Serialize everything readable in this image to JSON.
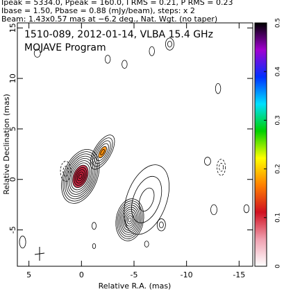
{
  "chart_data": {
    "type": "contour",
    "header": [
      "Ipeak = 5334.0, Ppeak = 160.0, I RMS = 0.21, P RMS = 0.23",
      "Ibase = 1.50, Pbase = 0.88 (mJy/beam), steps: x 2",
      "Beam: 1.43x0.57 mas at −6.2 deg., Nat. Wgt. (no taper)"
    ],
    "title": "1510-089, 2012-01-14, VLBA 15.4 GHz",
    "subtitle": "MOJAVE Program",
    "xlabel": "Relative R.A. (mas)",
    "ylabel": "Relative Declination (mas)",
    "xlim": [
      6.1,
      -16.3
    ],
    "ylim": [
      -8.6,
      15.5
    ],
    "xticks": [
      5,
      0,
      -5,
      -10,
      -15
    ],
    "yticks": [
      -5,
      0,
      5,
      10,
      15
    ],
    "clim": [
      0,
      0.5
    ],
    "cticks": [
      0,
      0.1,
      0.2,
      0.3,
      0.4,
      0.5
    ],
    "colormap": [
      "#ffffff",
      "#f0a0b0",
      "#d01020",
      "#ff8000",
      "#ffff00",
      "#00d000",
      "#00e0ff",
      "#0030ff",
      "#a000d0",
      "#000000"
    ],
    "contour_color": "#000000",
    "components": [
      {
        "x": -6.2,
        "y": -2.0,
        "rx": 1.9,
        "ry": 3.6,
        "angle": 20,
        "n": 3
      },
      {
        "x": 0.1,
        "y": 0.3,
        "rx": 1.6,
        "ry": 2.8,
        "angle": 22,
        "n": 12,
        "fill": "#c0203a"
      },
      {
        "x": -2.0,
        "y": 2.7,
        "rx": 0.8,
        "ry": 1.9,
        "angle": 30,
        "n": 6,
        "fill": "#ff8c00"
      },
      {
        "x": -4.6,
        "y": -4.0,
        "rx": 1.3,
        "ry": 2.1,
        "angle": 10,
        "n": 10
      },
      {
        "x": 1.5,
        "y": 0.8,
        "rx": 0.5,
        "ry": 1.0,
        "angle": 0,
        "n": 2,
        "dashed": true
      },
      {
        "x": -2.5,
        "y": 11.9,
        "rx": 0.25,
        "ry": 0.4,
        "angle": 0,
        "n": 1
      },
      {
        "x": -4.1,
        "y": 11.4,
        "rx": 0.25,
        "ry": 0.4,
        "angle": 0,
        "n": 1
      },
      {
        "x": -6.7,
        "y": 12.7,
        "rx": 0.25,
        "ry": 0.45,
        "angle": 0,
        "n": 1
      },
      {
        "x": -8.4,
        "y": 13.4,
        "rx": 0.4,
        "ry": 0.6,
        "angle": 0,
        "n": 2
      },
      {
        "x": 4.2,
        "y": 12.5,
        "rx": 0.3,
        "ry": 0.4,
        "angle": 0,
        "n": 1
      },
      {
        "x": -13.0,
        "y": 9.0,
        "rx": 0.25,
        "ry": 0.5,
        "angle": 0,
        "n": 1
      },
      {
        "x": -12.0,
        "y": 1.8,
        "rx": 0.3,
        "ry": 0.4,
        "angle": 0,
        "n": 1
      },
      {
        "x": -13.3,
        "y": 1.2,
        "rx": 0.4,
        "ry": 0.8,
        "angle": 0,
        "n": 2,
        "dashed": true
      },
      {
        "x": -12.6,
        "y": -3.0,
        "rx": 0.3,
        "ry": 0.5,
        "angle": 0,
        "n": 1
      },
      {
        "x": -15.7,
        "y": -2.9,
        "rx": 0.25,
        "ry": 0.4,
        "angle": 0,
        "n": 1
      },
      {
        "x": -7.6,
        "y": -4.5,
        "rx": 0.4,
        "ry": 0.6,
        "angle": 0,
        "n": 2
      },
      {
        "x": -1.2,
        "y": -4.6,
        "rx": 0.2,
        "ry": 0.35,
        "angle": 0,
        "n": 1
      },
      {
        "x": -1.2,
        "y": -6.6,
        "rx": 0.15,
        "ry": 0.25,
        "angle": 0,
        "n": 1
      },
      {
        "x": -6.2,
        "y": -6.4,
        "rx": 0.2,
        "ry": 0.3,
        "angle": 0,
        "n": 1
      },
      {
        "x": 5.6,
        "y": -6.2,
        "rx": 0.3,
        "ry": 0.6,
        "angle": 0,
        "n": 1
      }
    ]
  }
}
